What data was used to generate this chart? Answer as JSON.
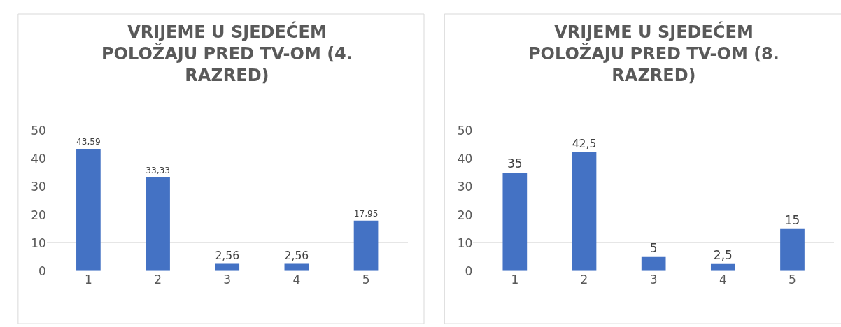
{
  "chart_data": [
    {
      "type": "bar",
      "title": "VRIJEME U SJEDEĆEM POLOŽAJU PRED TV-OM (4. RAZRED)",
      "categories": [
        "1",
        "2",
        "3",
        "4",
        "5"
      ],
      "values": [
        43.59,
        33.33,
        2.56,
        2.56,
        17.95
      ],
      "value_labels": [
        "43,59",
        "33,33",
        "2,56",
        "2,56",
        "17,95"
      ],
      "color": "#4472c4",
      "ylim": [
        0,
        50
      ],
      "yticks": [
        0,
        10,
        20,
        30,
        40,
        50
      ],
      "grid": "y",
      "legend": false
    },
    {
      "type": "bar",
      "title": "VRIJEME U SJEDEĆEM POLOŽAJU PRED TV-OM (8. RAZRED)",
      "categories": [
        "1",
        "2",
        "3",
        "4",
        "5"
      ],
      "values": [
        35,
        42.5,
        5,
        2.5,
        15
      ],
      "value_labels": [
        "35",
        "42,5",
        "5",
        "2,5",
        "15"
      ],
      "color": "#4472c4",
      "ylim": [
        0,
        50
      ],
      "yticks": [
        0,
        10,
        20,
        30,
        40,
        50
      ],
      "grid": "y",
      "legend": false
    }
  ]
}
